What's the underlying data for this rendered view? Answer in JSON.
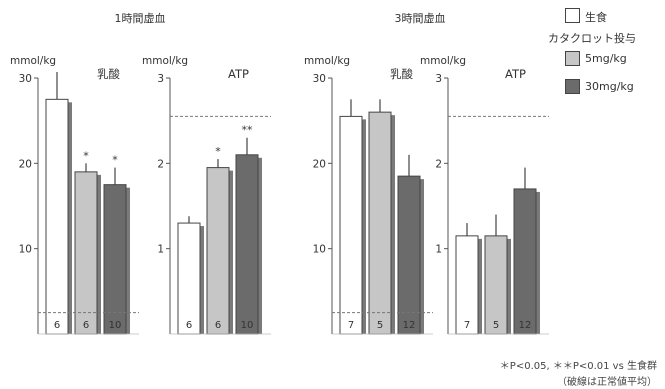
{
  "legend": {
    "items": [
      {
        "label": "生食",
        "color": "#ffffff"
      },
      {
        "label": "5mg/kg",
        "color": "#c6c6c6"
      },
      {
        "label": "30mg/kg",
        "color": "#6b6b6b"
      }
    ],
    "group_label": "カタクロット投与"
  },
  "footnote": {
    "line1": "＊P<0.05, ＊＊P<0.01 vs 生食群",
    "line2": "（破線は正常値平均）"
  },
  "chart_data": [
    {
      "type": "bar",
      "group_title": "1時間虚血",
      "title": "乳酸",
      "ylabel": "mmol/kg",
      "ylim": [
        0,
        30
      ],
      "yticks": [
        10,
        20,
        30
      ],
      "normal_mean": 2.5,
      "series": [
        {
          "name": "生食",
          "value": 27.5,
          "error": 3.2,
          "n": "6",
          "sig": ""
        },
        {
          "name": "5mg/kg",
          "value": 19.0,
          "error": 1.0,
          "n": "6",
          "sig": "*"
        },
        {
          "name": "30mg/kg",
          "value": 17.5,
          "error": 2.0,
          "n": "10",
          "sig": "*"
        }
      ]
    },
    {
      "type": "bar",
      "group_title": "",
      "title": "ATP",
      "ylabel": "mmol/kg",
      "ylim": [
        0,
        3
      ],
      "yticks": [
        1,
        2,
        3
      ],
      "normal_mean": 2.55,
      "series": [
        {
          "name": "生食",
          "value": 1.3,
          "error": 0.08,
          "n": "6",
          "sig": ""
        },
        {
          "name": "5mg/kg",
          "value": 1.95,
          "error": 0.1,
          "n": "6",
          "sig": "*"
        },
        {
          "name": "30mg/kg",
          "value": 2.1,
          "error": 0.2,
          "n": "10",
          "sig": "**"
        }
      ]
    },
    {
      "type": "bar",
      "group_title": "3時間虚血",
      "title": "乳酸",
      "ylabel": "mmol/kg",
      "ylim": [
        0,
        30
      ],
      "yticks": [
        10,
        20,
        30
      ],
      "normal_mean": 2.5,
      "series": [
        {
          "name": "生食",
          "value": 25.5,
          "error": 2.0,
          "n": "7",
          "sig": ""
        },
        {
          "name": "5mg/kg",
          "value": 26.0,
          "error": 1.5,
          "n": "5",
          "sig": ""
        },
        {
          "name": "30mg/kg",
          "value": 18.5,
          "error": 2.5,
          "n": "12",
          "sig": ""
        }
      ]
    },
    {
      "type": "bar",
      "group_title": "",
      "title": "ATP",
      "ylabel": "mmol/kg",
      "ylim": [
        0,
        3
      ],
      "yticks": [
        1,
        2,
        3
      ],
      "normal_mean": 2.55,
      "series": [
        {
          "name": "生食",
          "value": 1.15,
          "error": 0.15,
          "n": "7",
          "sig": ""
        },
        {
          "name": "5mg/kg",
          "value": 1.15,
          "error": 0.25,
          "n": "5",
          "sig": ""
        },
        {
          "name": "30mg/kg",
          "value": 1.7,
          "error": 0.25,
          "n": "12",
          "sig": ""
        }
      ]
    }
  ]
}
